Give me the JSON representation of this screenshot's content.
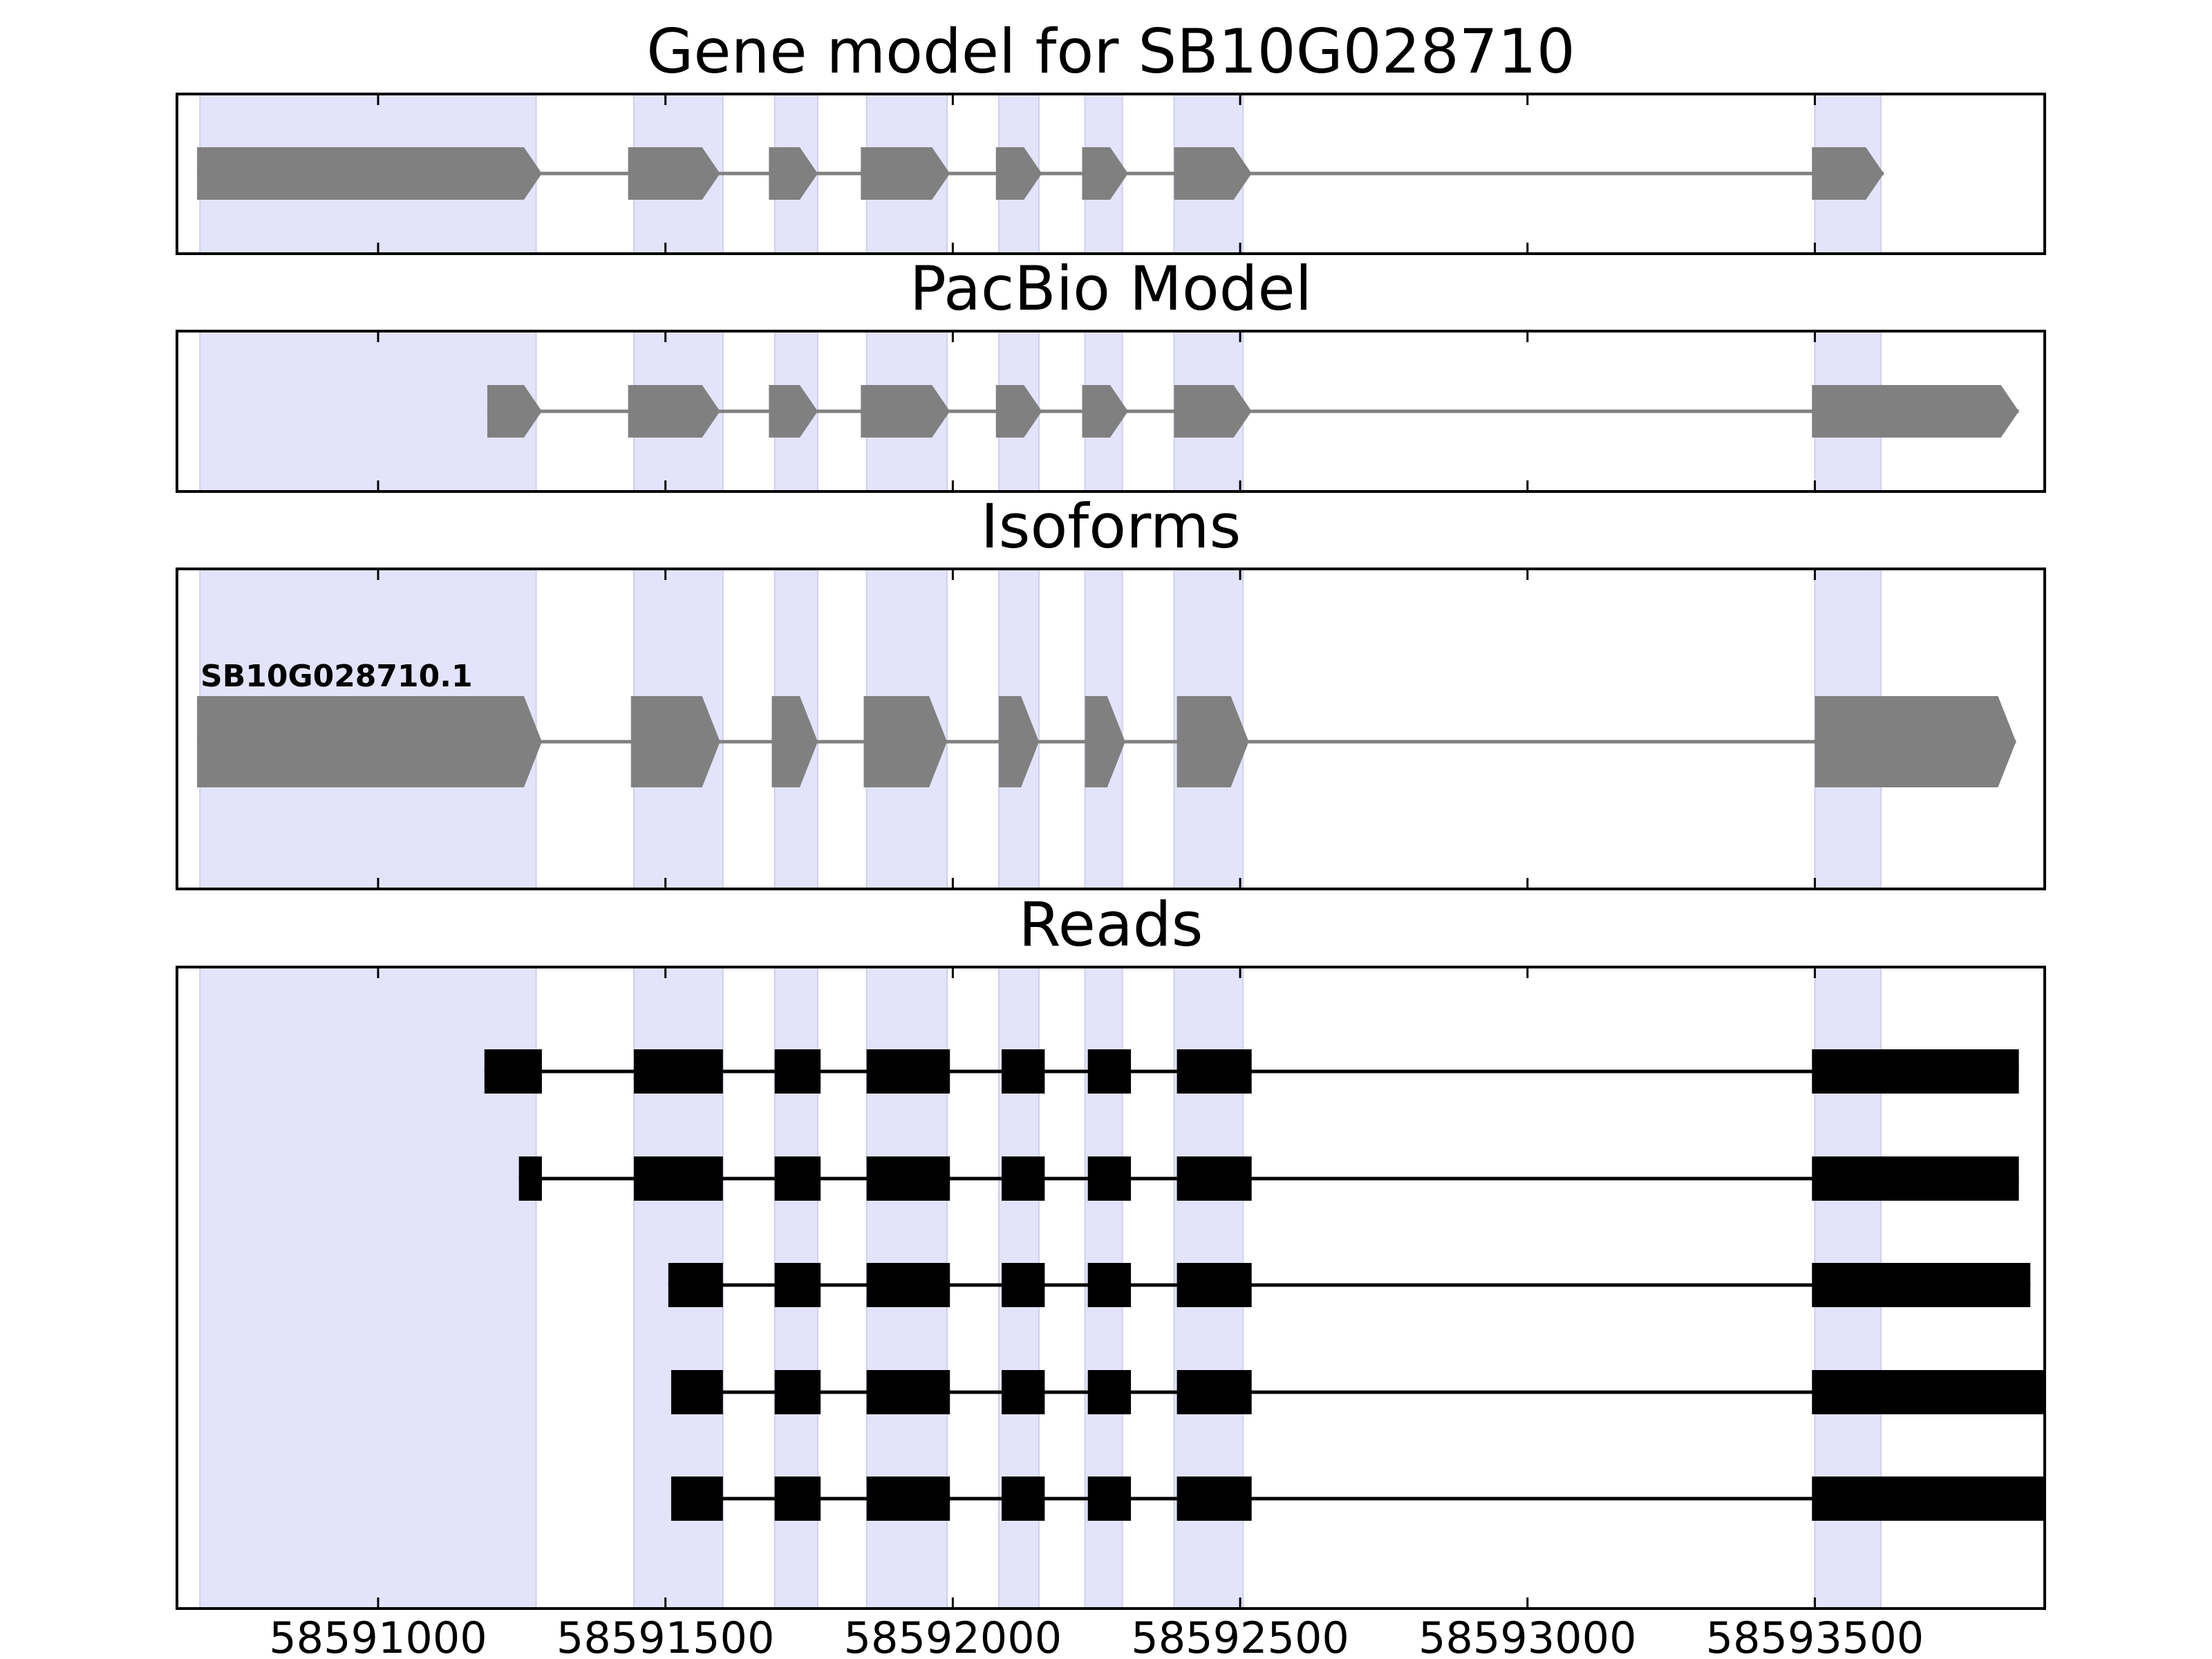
{
  "colors": {
    "highlight": "#e3e3fb",
    "highlight_edge": "#cfcff0",
    "model": "#808080",
    "read": "#000000",
    "frame": "#000000"
  },
  "chart_data": {
    "type": "gene-structure",
    "xlim": [
      58590650,
      58593900
    ],
    "x_ticks": [
      58591000,
      58591500,
      58592000,
      58592500,
      58593000,
      58593500
    ],
    "x_tick_labels": [
      "58591000",
      "58591500",
      "58592000",
      "58592500",
      "58593000",
      "58593500"
    ],
    "highlight_regions": [
      [
        58590690,
        58591275
      ],
      [
        58591445,
        58591600
      ],
      [
        58591690,
        58591765
      ],
      [
        58591850,
        58591990
      ],
      [
        58592080,
        58592150
      ],
      [
        58592230,
        58592295
      ],
      [
        58592385,
        58592505
      ],
      [
        58593500,
        58593615
      ]
    ],
    "panels": [
      {
        "title": "Gene model for SB10G028710",
        "kind": "model",
        "tracks": [
          {
            "exons": [
              [
                58590685,
                58591285
              ],
              [
                58591435,
                58591595
              ],
              [
                58591680,
                58591765
              ],
              [
                58591840,
                58591995
              ],
              [
                58592075,
                58592155
              ],
              [
                58592225,
                58592305
              ],
              [
                58592385,
                58592520
              ],
              [
                58593495,
                58593620
              ]
            ]
          }
        ]
      },
      {
        "title": "PacBio Model",
        "kind": "model",
        "tracks": [
          {
            "exons": [
              [
                58591190,
                58591285
              ],
              [
                58591435,
                58591595
              ],
              [
                58591680,
                58591765
              ],
              [
                58591840,
                58591995
              ],
              [
                58592075,
                58592155
              ],
              [
                58592225,
                58592305
              ],
              [
                58592385,
                58592520
              ],
              [
                58593495,
                58593855
              ]
            ]
          }
        ]
      },
      {
        "title": "Isoforms",
        "kind": "isoform",
        "tracks": [
          {
            "label": "SB10G028710.1",
            "exons": [
              [
                58590685,
                58591285
              ],
              [
                58591440,
                58591595
              ],
              [
                58591685,
                58591765
              ],
              [
                58591845,
                58591990
              ],
              [
                58592080,
                58592150
              ],
              [
                58592230,
                58592300
              ],
              [
                58592390,
                58592515
              ],
              [
                58593500,
                58593850
              ]
            ]
          }
        ]
      },
      {
        "title": "Reads",
        "kind": "reads",
        "tracks": [
          {
            "exons": [
              [
                58591185,
                58591285
              ],
              [
                58591445,
                58591600
              ],
              [
                58591690,
                58591770
              ],
              [
                58591850,
                58591995
              ],
              [
                58592085,
                58592160
              ],
              [
                58592235,
                58592310
              ],
              [
                58592390,
                58592520
              ],
              [
                58593495,
                58593855
              ]
            ]
          },
          {
            "exons": [
              [
                58591245,
                58591285
              ],
              [
                58591445,
                58591600
              ],
              [
                58591690,
                58591770
              ],
              [
                58591850,
                58591995
              ],
              [
                58592085,
                58592160
              ],
              [
                58592235,
                58592310
              ],
              [
                58592390,
                58592520
              ],
              [
                58593495,
                58593855
              ]
            ]
          },
          {
            "exons": [
              [
                58591505,
                58591600
              ],
              [
                58591690,
                58591770
              ],
              [
                58591850,
                58591995
              ],
              [
                58592085,
                58592160
              ],
              [
                58592235,
                58592310
              ],
              [
                58592390,
                58592520
              ],
              [
                58593495,
                58593875
              ]
            ]
          },
          {
            "exons": [
              [
                58591510,
                58591600
              ],
              [
                58591690,
                58591770
              ],
              [
                58591850,
                58591995
              ],
              [
                58592085,
                58592160
              ],
              [
                58592235,
                58592310
              ],
              [
                58592390,
                58592520
              ],
              [
                58593495,
                58593900
              ]
            ]
          },
          {
            "exons": [
              [
                58591510,
                58591600
              ],
              [
                58591690,
                58591770
              ],
              [
                58591850,
                58591995
              ],
              [
                58592085,
                58592160
              ],
              [
                58592235,
                58592310
              ],
              [
                58592390,
                58592520
              ],
              [
                58593495,
                58593900
              ]
            ]
          }
        ]
      }
    ]
  }
}
